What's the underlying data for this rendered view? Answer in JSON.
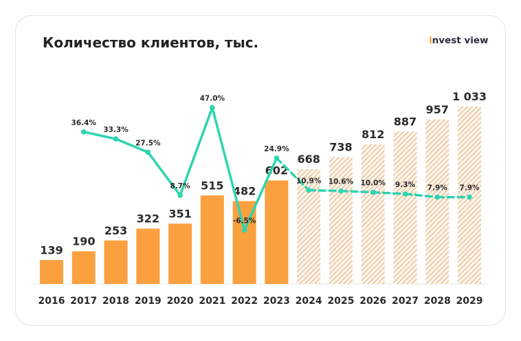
{
  "title": "Количество клиентов, тыс.",
  "logo": "invest view",
  "chart_data": {
    "type": "bar+line",
    "title": "Количество клиентов, тыс.",
    "categories": [
      "2016",
      "2017",
      "2018",
      "2019",
      "2020",
      "2021",
      "2022",
      "2023",
      "2024",
      "2025",
      "2026",
      "2027",
      "2028",
      "2029"
    ],
    "series": [
      {
        "type": "bar",
        "values": [
          139,
          190,
          253,
          322,
          351,
          515,
          482,
          602,
          668,
          738,
          812,
          887,
          957,
          1033
        ],
        "value_labels": [
          "139",
          "190",
          "253",
          "322",
          "351",
          "515",
          "482",
          "602",
          "668",
          "738",
          "812",
          "887",
          "957",
          "1 033"
        ],
        "forecast_from": "2024",
        "color": "#fba03f",
        "forecast_color": "#e8b77f"
      },
      {
        "type": "line",
        "values": [
          null,
          36.4,
          33.3,
          27.5,
          8.7,
          47.0,
          -6.5,
          24.9,
          10.9,
          10.6,
          10.0,
          9.3,
          7.9,
          7.9
        ],
        "value_labels": [
          "",
          "36.4%",
          "33.3%",
          "27.5%",
          "8.7%",
          "47.0%",
          "-6.5%",
          "24.9%",
          "10.9%",
          "10.6%",
          "10.0%",
          "9.3%",
          "7.9%",
          "7.9%"
        ],
        "dashed_from": "2023",
        "color": "#2dd4b0",
        "unit": "%"
      }
    ],
    "legend": "none",
    "grid": false
  }
}
